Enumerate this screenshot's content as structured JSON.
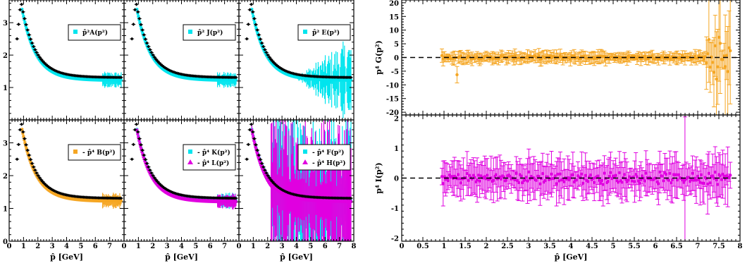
{
  "colors": {
    "cyan": "#00e5ee",
    "orange": "#f5a623",
    "magenta": "#e000e0",
    "black": "#000000"
  },
  "chart_data": [
    {
      "type": "scatter",
      "panel": "A",
      "xlabel": "",
      "xlim": [
        0,
        8
      ],
      "ylim": [
        0,
        3.7
      ],
      "yticks": [
        1,
        2,
        3
      ],
      "xticks": [],
      "series": [
        {
          "name": "p̂²A(p²)",
          "color": "#00e5ee",
          "marker": "square",
          "values": []
        },
        {
          "color": "#000000",
          "marker": "diamond",
          "values": []
        }
      ]
    },
    {
      "type": "scatter",
      "panel": "J",
      "xlabel": "",
      "xlim": [
        0,
        8
      ],
      "ylim": [
        0,
        3.7
      ],
      "yticks": [],
      "xticks": [],
      "series": [
        {
          "name": "p̂² J(p²)",
          "color": "#00e5ee",
          "marker": "square"
        },
        {
          "color": "#000000",
          "marker": "diamond"
        }
      ]
    },
    {
      "type": "scatter",
      "panel": "E",
      "xlabel": "",
      "xlim": [
        0,
        8
      ],
      "ylim": [
        0,
        3.7
      ],
      "yticks": [],
      "xticks": [],
      "series": [
        {
          "name": "p̂² E(p²)",
          "color": "#00e5ee",
          "marker": "square"
        },
        {
          "color": "#000000",
          "marker": "diamond"
        }
      ]
    },
    {
      "type": "scatter",
      "panel": "B",
      "xlabel": "p̂ [GeV]",
      "xlim": [
        0,
        8
      ],
      "ylim": [
        0,
        3.7
      ],
      "yticks": [
        0,
        1,
        2,
        3
      ],
      "xticks": [
        0,
        1,
        2,
        3,
        4,
        5,
        6,
        7
      ],
      "series": [
        {
          "name": "- p̂⁴ B(p²)",
          "color": "#f5a623",
          "marker": "square"
        },
        {
          "color": "#000000",
          "marker": "diamond"
        }
      ]
    },
    {
      "type": "scatter",
      "panel": "KL",
      "xlabel": "p̂ [GeV]",
      "xlim": [
        0,
        8
      ],
      "ylim": [
        0,
        3.7
      ],
      "yticks": [],
      "xticks": [
        0,
        1,
        2,
        3,
        4,
        5,
        6,
        7
      ],
      "series": [
        {
          "name": "- p̂⁴ K(p²)",
          "color": "#00e5ee",
          "marker": "square"
        },
        {
          "name": "- p̂⁴ L(p²)",
          "color": "#e000e0",
          "marker": "triangle"
        },
        {
          "color": "#000000",
          "marker": "diamond"
        }
      ]
    },
    {
      "type": "scatter",
      "panel": "FH",
      "xlabel": "p̂ [GeV]",
      "xlim": [
        0,
        8
      ],
      "ylim": [
        0,
        3.7
      ],
      "yticks": [],
      "xticks": [
        0,
        1,
        2,
        3,
        4,
        5,
        6,
        7,
        8
      ],
      "series": [
        {
          "name": "- p̂⁴ F(p²)",
          "color": "#00e5ee",
          "marker": "square"
        },
        {
          "name": "- p̂⁴ H(p²)",
          "color": "#e000e0",
          "marker": "triangle"
        },
        {
          "color": "#000000",
          "marker": "diamond"
        }
      ]
    },
    {
      "type": "scatter",
      "panel": "G",
      "ylabel": "p⁴ G(p²)",
      "xlabel": "",
      "xlim": [
        0,
        8
      ],
      "ylim": [
        -21,
        21
      ],
      "yticks": [
        -20,
        -15,
        -10,
        -5,
        0,
        5,
        10,
        15,
        20
      ],
      "xticks": [],
      "series": [
        {
          "color": "#f5a623",
          "marker": "circle"
        }
      ],
      "reference_line": 0
    },
    {
      "type": "scatter",
      "panel": "I",
      "ylabel": "p⁴ I(p²)",
      "xlabel": "p̂ [GeV]",
      "xlim": [
        0,
        8
      ],
      "ylim": [
        -2.1,
        2.1
      ],
      "yticks": [
        -2,
        -1,
        0,
        1,
        2
      ],
      "xticks": [
        0,
        0.5,
        1,
        1.5,
        2,
        2.5,
        3,
        3.5,
        4,
        4.5,
        5,
        5.5,
        6,
        6.5,
        7,
        7.5,
        8
      ],
      "series": [
        {
          "color": "#e000e0",
          "marker": "circle"
        }
      ],
      "reference_line": 0
    }
  ],
  "labels": {
    "left_xlabel": "p̂ [GeV]",
    "right_xlabel": "p̂ [GeV]",
    "g_ylabel": "p⁴ G(p²)",
    "i_ylabel": "p⁴ I(p²)",
    "legend_A": "p̂²A(p²)",
    "legend_J": "p̂² J(p²)",
    "legend_E": "p̂² E(p²)",
    "legend_B": "- p̂⁴ B(p²)",
    "legend_K": "- p̂⁴ K(p²)",
    "legend_L": "- p̂⁴ L(p²)",
    "legend_F": "- p̂⁴ F(p²)",
    "legend_H": "- p̂⁴ H(p²)"
  }
}
